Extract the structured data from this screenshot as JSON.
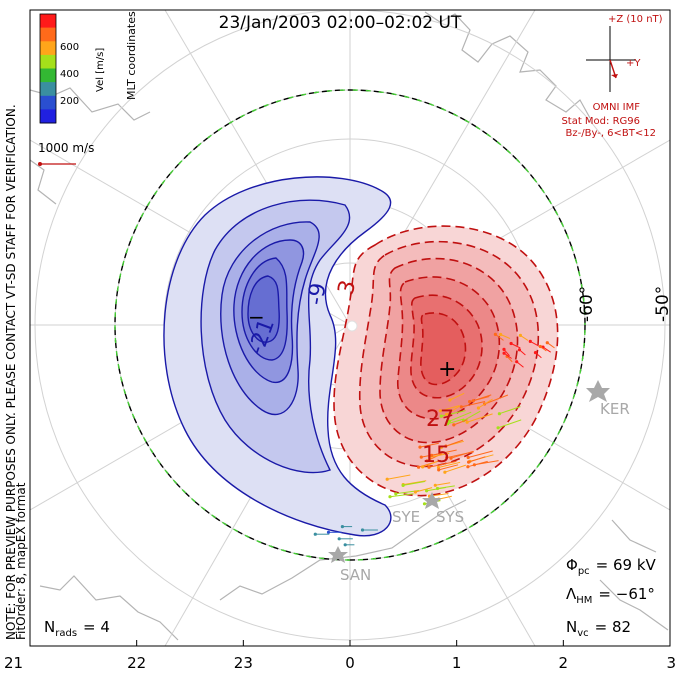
{
  "title": "23/Jan/2003 02:00–02:02 UT",
  "side_note": "NOTE: FOR PREVIEW PURPOSES ONLY. PLEASE CONTACT VT-SD STAFF FOR VERIFICATION.",
  "fit_info": "FitOrder: 8, mapEX format",
  "coords_label": "MLT coordinates",
  "colorbar": {
    "label": "Vel [m/s]",
    "ticks": [
      "600",
      "400",
      "200"
    ],
    "colors": [
      "#ff1a1a",
      "#ff6a1a",
      "#ffa51a",
      "#a5e01a",
      "#33b833",
      "#3a8fa0",
      "#2a4fd0",
      "#2020e0"
    ]
  },
  "velocity_scale": "1000 m/s",
  "imf": {
    "z_label": "+Z (10 nT)",
    "y_label": "+Y",
    "source": "OMNI IMF",
    "stat_model": "Stat Mod: RG96",
    "condition": "Bz-/By-, 6<BT<12"
  },
  "lat_labels": [
    "-60°",
    "-50°"
  ],
  "stations": [
    "KER",
    "SYE",
    "SYS",
    "SAN"
  ],
  "stats": {
    "phi_sym": "Φ",
    "phi_sub": "pc",
    "phi_value": "= 69 kV",
    "lambda_sym": "Λ",
    "lambda_sub": "HM",
    "lambda_value": "= −61°",
    "nvc_sym": "N",
    "nvc_sub": "vc",
    "nvc_value": "= 82",
    "nrads_sym": "N",
    "nrads_sub": "rads",
    "nrads_value": "= 4"
  },
  "chart_data": {
    "type": "other",
    "title": "23/Jan/2003 02:00–02:02 UT",
    "x_axis": {
      "ticks": [
        "21",
        "22",
        "23",
        "0",
        "1",
        "2",
        "3"
      ]
    },
    "contour_labels": [
      "-21",
      "-9",
      "3",
      "27",
      "15"
    ],
    "extrema": {
      "min_marker": "−",
      "max_marker": "+"
    },
    "potential_pc_kv": 69,
    "hm_boundary_lat_deg": -61,
    "n_vectors": 82,
    "n_radars": 4
  }
}
